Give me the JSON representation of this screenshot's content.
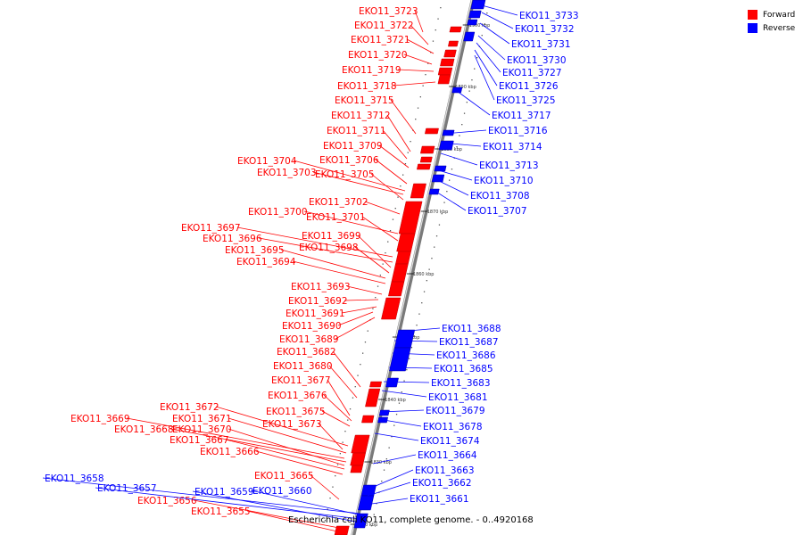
{
  "legend": [
    {
      "label": "Forward",
      "color": "#ff0000"
    },
    {
      "label": "Reverse",
      "color": "#0000ff"
    }
  ],
  "caption": "Escherichia coli KO11, complete genome. - 0..4920168",
  "axis_ticks": [
    "1900 kbp",
    "1890 kbp",
    "1880 kbp",
    "1870 kbp",
    "1860 kbp",
    "1850 kbp",
    "1840 kbp",
    "1830 kbp",
    "1820 kbp"
  ],
  "genes_forward": [
    "EKO11_3723",
    "EKO11_3722",
    "EKO11_3721",
    "EKO11_3720",
    "EKO11_3719",
    "EKO11_3718",
    "EKO11_3715",
    "EKO11_3712",
    "EKO11_3711",
    "EKO11_3709",
    "EKO11_3706",
    "EKO11_3704",
    "EKO11_3703",
    "EKO11_3705",
    "EKO11_3702",
    "EKO11_3700",
    "EKO11_3701",
    "EKO11_3697",
    "EKO11_3696",
    "EKO11_3699",
    "EKO11_3698",
    "EKO11_3695",
    "EKO11_3694",
    "EKO11_3693",
    "EKO11_3692",
    "EKO11_3691",
    "EKO11_3690",
    "EKO11_3689",
    "EKO11_3682",
    "EKO11_3680",
    "EKO11_3677",
    "EKO11_3676",
    "EKO11_3672",
    "EKO11_3675",
    "EKO11_3671",
    "EKO11_3669",
    "EKO11_3673",
    "EKO11_3668",
    "EKO11_3670",
    "EKO11_3667",
    "EKO11_3666",
    "EKO11_3665",
    "EKO11_3656",
    "EKO11_3655"
  ],
  "genes_reverse": [
    "EKO11_3733",
    "EKO11_3732",
    "EKO11_3731",
    "EKO11_3730",
    "EKO11_3727",
    "EKO11_3726",
    "EKO11_3725",
    "EKO11_3717",
    "EKO11_3716",
    "EKO11_3714",
    "EKO11_3713",
    "EKO11_3710",
    "EKO11_3708",
    "EKO11_3707",
    "EKO11_3688",
    "EKO11_3687",
    "EKO11_3686",
    "EKO11_3685",
    "EKO11_3683",
    "EKO11_3681",
    "EKO11_3679",
    "EKO11_3678",
    "EKO11_3674",
    "EKO11_3664",
    "EKO11_3663",
    "EKO11_3662",
    "EKO11_3661",
    "EKO11_3658",
    "EKO11_3657",
    "EKO11_3659",
    "EKO11_3660"
  ]
}
